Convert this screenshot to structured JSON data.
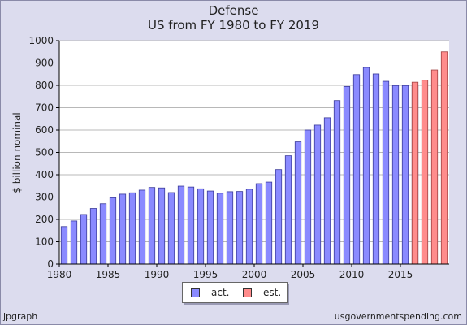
{
  "chart_data": {
    "type": "bar",
    "title": "Defense",
    "subtitle": "US from FY 1980 to FY 2019",
    "xlabel": "",
    "ylabel": "$ billion nominal",
    "ylim": [
      0,
      1000
    ],
    "yticks": [
      0,
      100,
      200,
      300,
      400,
      500,
      600,
      700,
      800,
      900,
      1000
    ],
    "xticks": [
      1980,
      1985,
      1990,
      1995,
      2000,
      2005,
      2010,
      2015
    ],
    "grid": true,
    "legend_placement": "bottom",
    "series": [
      {
        "name": "act.",
        "color": "#8a8aff",
        "x": [
          1980,
          1981,
          1982,
          1983,
          1984,
          1985,
          1986,
          1987,
          1988,
          1989,
          1990,
          1991,
          1992,
          1993,
          1994,
          1995,
          1996,
          1997,
          1998,
          1999,
          2000,
          2001,
          2002,
          2003,
          2004,
          2005,
          2006,
          2007,
          2008,
          2009,
          2010,
          2011,
          2012,
          2013,
          2014,
          2015,
          2016
        ],
        "values": [
          168,
          193,
          222,
          249,
          270,
          297,
          313,
          319,
          331,
          343,
          341,
          320,
          349,
          345,
          337,
          327,
          317,
          324,
          325,
          335,
          360,
          367,
          423,
          485,
          547,
          600,
          622,
          655,
          732,
          795,
          848,
          880,
          851,
          818,
          799,
          799,
          799
        ]
      },
      {
        "name": "est.",
        "color": "#ff8c8c",
        "x": [
          2016,
          2017,
          2018,
          2019
        ],
        "values": [
          814,
          823,
          869,
          950
        ]
      }
    ]
  },
  "credits": {
    "left": "jpgraph",
    "right": "usgovernmentspending.com"
  }
}
